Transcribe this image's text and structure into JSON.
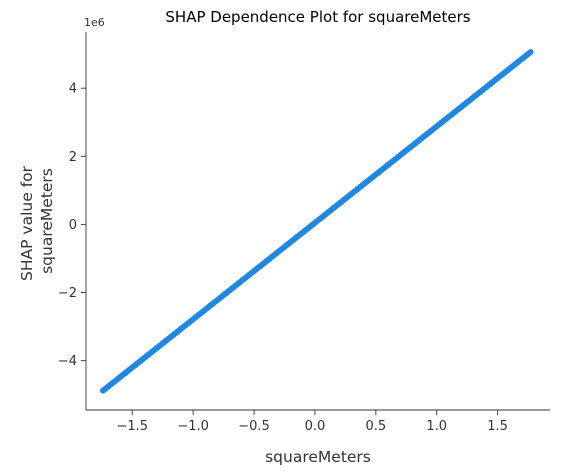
{
  "chart_data": {
    "type": "scatter",
    "title": "SHAP Dependence Plot for squareMeters",
    "xlabel": "squareMeters",
    "ylabel_lines": [
      "SHAP value for",
      "squareMeters"
    ],
    "y_offset_label": "1e6",
    "xlim": [
      -1.88,
      1.93
    ],
    "ylim": [
      -5.45,
      5.65
    ],
    "x_ticks": [
      -1.5,
      -1.0,
      -0.5,
      0.0,
      0.5,
      1.0,
      1.5
    ],
    "x_tick_labels": [
      "−1.5",
      "−1.0",
      "−0.5",
      "0.0",
      "0.5",
      "1.0",
      "1.5"
    ],
    "y_ticks": [
      -4,
      -2,
      0,
      2,
      4
    ],
    "y_tick_labels": [
      "−4",
      "−2",
      "0",
      "2",
      "4"
    ],
    "grid": false,
    "series": [
      {
        "color": "#1e88e5",
        "x_range": [
          -1.74,
          1.77
        ],
        "y_range": [
          -4.88,
          5.06
        ],
        "relation": "linear"
      }
    ]
  }
}
